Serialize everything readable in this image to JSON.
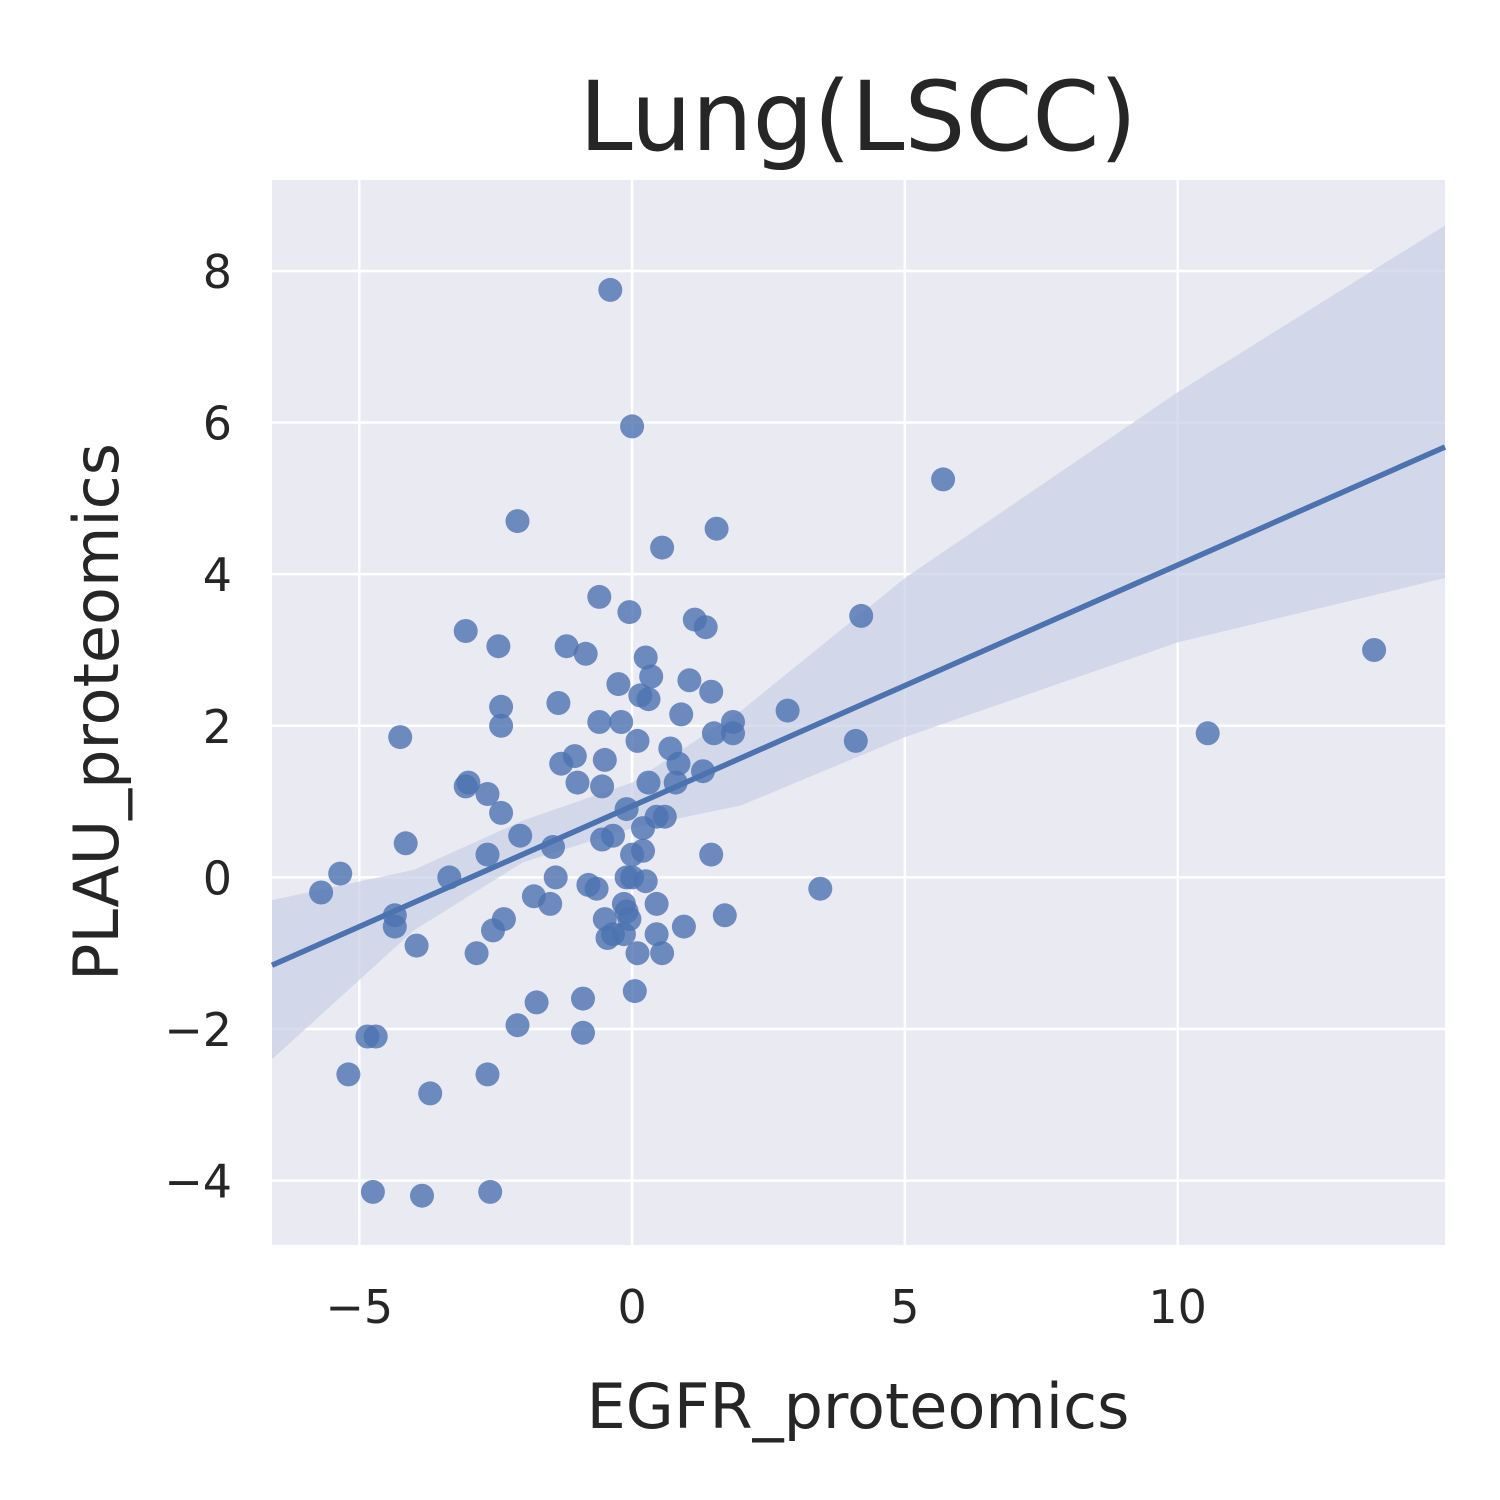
{
  "chart_data": {
    "type": "scatter",
    "title": "Lung(LSCC)",
    "xlabel": "EGFR_proteomics",
    "ylabel": "PLAU_proteomics",
    "xlim": [
      -6.6,
      14.9
    ],
    "ylim": [
      -4.85,
      9.2
    ],
    "xticks": [
      -5,
      0,
      5,
      10
    ],
    "yticks": [
      -4,
      -2,
      0,
      2,
      4,
      6,
      8
    ],
    "xtick_labels": [
      "−5",
      "0",
      "5",
      "10"
    ],
    "ytick_labels": [
      "−4",
      "−2",
      "0",
      "2",
      "4",
      "6",
      "8"
    ],
    "grid": true,
    "legend": "none",
    "colors": {
      "background": "#eaeaf2",
      "grid": "#ffffff",
      "points": "#4c72b0",
      "line": "#4c72b0",
      "band": "#c9d2e6"
    },
    "regression": {
      "slope": 0.318,
      "intercept": 0.94
    },
    "confidence_band": {
      "x": [
        -6.6,
        -4,
        -2,
        0,
        2,
        5,
        10,
        14.9
      ],
      "lower": [
        -2.4,
        -0.7,
        0.2,
        0.65,
        0.95,
        1.85,
        3.1,
        3.95
      ],
      "upper": [
        -0.3,
        0.1,
        0.75,
        1.25,
        2.2,
        3.95,
        6.4,
        8.6
      ]
    },
    "points": [
      {
        "x": -0.4,
        "y": 7.75
      },
      {
        "x": 0.0,
        "y": 5.95
      },
      {
        "x": 5.7,
        "y": 5.25
      },
      {
        "x": -2.1,
        "y": 4.7
      },
      {
        "x": 0.55,
        "y": 4.35
      },
      {
        "x": 1.55,
        "y": 4.6
      },
      {
        "x": -0.6,
        "y": 3.7
      },
      {
        "x": -0.05,
        "y": 3.5
      },
      {
        "x": 4.2,
        "y": 3.45
      },
      {
        "x": 13.6,
        "y": 3.0
      },
      {
        "x": -3.05,
        "y": 3.25
      },
      {
        "x": -2.45,
        "y": 3.05
      },
      {
        "x": -1.2,
        "y": 3.05
      },
      {
        "x": -0.85,
        "y": 2.95
      },
      {
        "x": 1.15,
        "y": 3.4
      },
      {
        "x": 1.35,
        "y": 3.3
      },
      {
        "x": 0.25,
        "y": 2.9
      },
      {
        "x": 0.35,
        "y": 2.65
      },
      {
        "x": -0.25,
        "y": 2.55
      },
      {
        "x": 1.05,
        "y": 2.6
      },
      {
        "x": 1.45,
        "y": 2.45
      },
      {
        "x": 0.15,
        "y": 2.4
      },
      {
        "x": 0.3,
        "y": 2.35
      },
      {
        "x": -2.4,
        "y": 2.25
      },
      {
        "x": -1.35,
        "y": 2.3
      },
      {
        "x": 2.85,
        "y": 2.2
      },
      {
        "x": 0.9,
        "y": 2.15
      },
      {
        "x": -0.6,
        "y": 2.05
      },
      {
        "x": -0.2,
        "y": 2.05
      },
      {
        "x": -2.4,
        "y": 2.0
      },
      {
        "x": 1.85,
        "y": 2.05
      },
      {
        "x": 1.5,
        "y": 1.9
      },
      {
        "x": 1.85,
        "y": 1.9
      },
      {
        "x": 10.55,
        "y": 1.9
      },
      {
        "x": 0.1,
        "y": 1.8
      },
      {
        "x": 4.1,
        "y": 1.8
      },
      {
        "x": -4.25,
        "y": 1.85
      },
      {
        "x": 0.7,
        "y": 1.7
      },
      {
        "x": -1.05,
        "y": 1.6
      },
      {
        "x": -1.3,
        "y": 1.5
      },
      {
        "x": -0.5,
        "y": 1.55
      },
      {
        "x": 0.85,
        "y": 1.5
      },
      {
        "x": 1.3,
        "y": 1.4
      },
      {
        "x": -1.0,
        "y": 1.25
      },
      {
        "x": -0.55,
        "y": 1.2
      },
      {
        "x": 0.3,
        "y": 1.25
      },
      {
        "x": 0.8,
        "y": 1.25
      },
      {
        "x": -3.05,
        "y": 1.2
      },
      {
        "x": -3.0,
        "y": 1.25
      },
      {
        "x": -2.65,
        "y": 1.1
      },
      {
        "x": -0.1,
        "y": 0.9
      },
      {
        "x": -2.4,
        "y": 0.85
      },
      {
        "x": 0.45,
        "y": 0.8
      },
      {
        "x": 0.6,
        "y": 0.8
      },
      {
        "x": 0.2,
        "y": 0.65
      },
      {
        "x": -2.05,
        "y": 0.55
      },
      {
        "x": -0.35,
        "y": 0.55
      },
      {
        "x": -0.55,
        "y": 0.5
      },
      {
        "x": -4.15,
        "y": 0.45
      },
      {
        "x": -1.45,
        "y": 0.4
      },
      {
        "x": 0.2,
        "y": 0.35
      },
      {
        "x": 0.0,
        "y": 0.3
      },
      {
        "x": 1.45,
        "y": 0.3
      },
      {
        "x": -2.65,
        "y": 0.3
      },
      {
        "x": -5.35,
        "y": 0.05
      },
      {
        "x": -3.35,
        "y": 0.0
      },
      {
        "x": -1.4,
        "y": 0.0
      },
      {
        "x": -0.1,
        "y": 0.0
      },
      {
        "x": 0.0,
        "y": 0.0
      },
      {
        "x": 0.25,
        "y": -0.05
      },
      {
        "x": -0.8,
        "y": -0.1
      },
      {
        "x": -0.65,
        "y": -0.15
      },
      {
        "x": 3.45,
        "y": -0.15
      },
      {
        "x": -5.7,
        "y": -0.2
      },
      {
        "x": -1.8,
        "y": -0.25
      },
      {
        "x": -1.5,
        "y": -0.35
      },
      {
        "x": -0.15,
        "y": -0.35
      },
      {
        "x": 0.45,
        "y": -0.35
      },
      {
        "x": -0.1,
        "y": -0.45
      },
      {
        "x": -4.35,
        "y": -0.5
      },
      {
        "x": -2.35,
        "y": -0.55
      },
      {
        "x": 1.7,
        "y": -0.5
      },
      {
        "x": -0.5,
        "y": -0.55
      },
      {
        "x": -0.05,
        "y": -0.55
      },
      {
        "x": -4.35,
        "y": -0.65
      },
      {
        "x": -2.55,
        "y": -0.7
      },
      {
        "x": 0.95,
        "y": -0.65
      },
      {
        "x": -0.35,
        "y": -0.75
      },
      {
        "x": -0.15,
        "y": -0.75
      },
      {
        "x": 0.45,
        "y": -0.75
      },
      {
        "x": -0.45,
        "y": -0.8
      },
      {
        "x": -3.95,
        "y": -0.9
      },
      {
        "x": 0.55,
        "y": -1.0
      },
      {
        "x": 0.1,
        "y": -1.0
      },
      {
        "x": -2.85,
        "y": -1.0
      },
      {
        "x": 0.05,
        "y": -1.5
      },
      {
        "x": -0.9,
        "y": -1.6
      },
      {
        "x": -1.75,
        "y": -1.65
      },
      {
        "x": -2.1,
        "y": -1.95
      },
      {
        "x": -0.9,
        "y": -2.05
      },
      {
        "x": -4.85,
        "y": -2.1
      },
      {
        "x": -4.7,
        "y": -2.1
      },
      {
        "x": -5.2,
        "y": -2.6
      },
      {
        "x": -2.65,
        "y": -2.6
      },
      {
        "x": -3.7,
        "y": -2.85
      },
      {
        "x": -4.75,
        "y": -4.15
      },
      {
        "x": -3.85,
        "y": -4.2
      },
      {
        "x": -2.6,
        "y": -4.15
      }
    ]
  }
}
